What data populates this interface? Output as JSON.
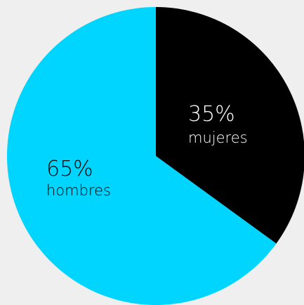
{
  "chart_data": {
    "type": "pie",
    "start_angle": "12 o'clock, clockwise",
    "slices": [
      {
        "label": "mujeres",
        "value": 35,
        "value_text": "35%",
        "color": "#000000",
        "text_color": "#ffffff"
      },
      {
        "label": "hombres",
        "value": 65,
        "value_text": "65%",
        "color": "#00d5ff",
        "text_color": "#000000"
      }
    ],
    "background": "#efefef"
  }
}
